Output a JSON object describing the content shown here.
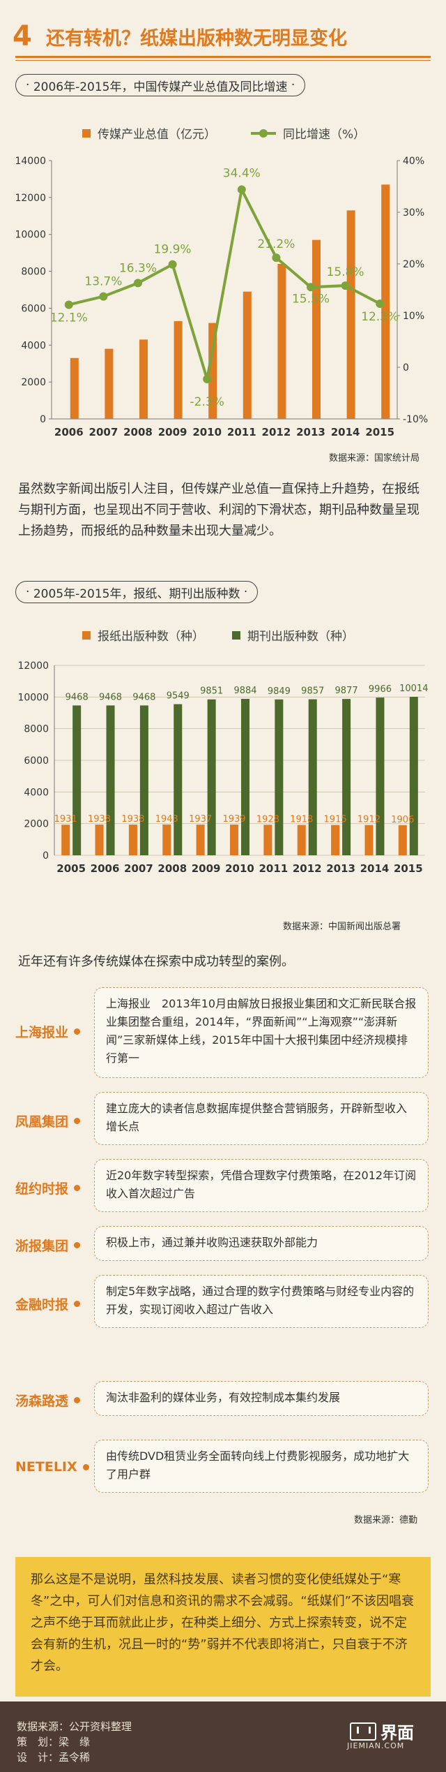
{
  "header": {
    "number": "4",
    "title": "还有转机？纸媒出版种数无明显变化"
  },
  "colors": {
    "orange": "#e07a20",
    "green": "#7ea33a",
    "darkgreen": "#4c6a2c",
    "yellow": "#f3c63f"
  },
  "chart_data": [
    {
      "type": "bar",
      "title": "2006年-2015年，中国传媒产业总值及同比增速",
      "categories": [
        "2006",
        "2007",
        "2008",
        "2009",
        "2010",
        "2011",
        "2012",
        "2013",
        "2014",
        "2015"
      ],
      "series": [
        {
          "name": "传媒产业总值（亿元）",
          "type": "bar",
          "axis": "left",
          "values": [
            3300,
            3800,
            4300,
            5300,
            5200,
            6900,
            8400,
            9700,
            11300,
            12700
          ]
        },
        {
          "name": "同比增速（%）",
          "type": "line",
          "axis": "right",
          "values": [
            12.1,
            13.7,
            16.3,
            19.9,
            -2.3,
            34.4,
            21.2,
            15.5,
            15.8,
            12.3
          ]
        }
      ],
      "data_labels": [
        "12.1%",
        "13.7%",
        "16.3%",
        "19.9%",
        "-2.3%",
        "34.4%",
        "21.2%",
        "15.5%",
        "15.8%",
        "12.3%"
      ],
      "ylim_left": [
        0,
        14000
      ],
      "yticks_left": [
        "0",
        "2000",
        "4000",
        "6000",
        "8000",
        "10000",
        "12000",
        "14000"
      ],
      "ylim_right": [
        -10,
        40
      ],
      "yticks_right": [
        "-10%",
        "0",
        "10%",
        "20%",
        "30%",
        "40%"
      ],
      "source": "数据来源：国家统计局"
    },
    {
      "type": "bar",
      "title": "2005年-2015年，报纸、期刊出版种数",
      "categories": [
        "2005",
        "2006",
        "2007",
        "2008",
        "2009",
        "2010",
        "2011",
        "2012",
        "2013",
        "2014",
        "2015"
      ],
      "series": [
        {
          "name": "报纸出版种数（种）",
          "values": [
            1931,
            1938,
            1938,
            1943,
            1937,
            1939,
            1928,
            1918,
            1915,
            1912,
            1906
          ]
        },
        {
          "name": "期刊出版种数（种）",
          "values": [
            9468,
            9468,
            9468,
            9549,
            9851,
            9884,
            9849,
            9857,
            9877,
            9966,
            10014
          ]
        }
      ],
      "ylim": [
        0,
        12000
      ],
      "yticks": [
        "0",
        "2000",
        "4000",
        "6000",
        "8000",
        "10000",
        "12000"
      ],
      "source": "数据来源：中国新闻出版总署"
    }
  ],
  "text": {
    "para1": "虽然数字新闻出版引人注目，但传媒产业总值一直保持上升趋势，在报纸与期刊方面，也呈现出不同于营收、利润的下滑状态，期刊品种数量呈现上扬趋势，而报纸的品种数量未出现大量减少。",
    "cases_intro": "近年还有许多传统媒体在探索中成功转型的案例。",
    "cases_source": "数据来源：德勤",
    "conclusion": "那么这是不是说明，虽然科技发展、读者习惯的变化使纸媒处于“寒冬”之中，可人们对信息和资讯的需求不会减弱。“纸媒们”不该因唱衰之声不绝于耳而就此止步，在种类上细分、方式上探索转变，说不定会有新的生机，况且一时的“势”弱并不代表即将消亡，只自衰于不济才会。"
  },
  "cases": [
    {
      "name": "上海报业",
      "desc": "上海报业　2013年10月由解放日报报业集团和文汇新民联合报业集团整合重组，2014年，“界面新闻”“上海观察”“澎湃新闻”三家新媒体上线，2015年中国十大报刊集团中经济规模排行第一"
    },
    {
      "name": "凤凰集团",
      "desc": "建立庞大的读者信息数据库提供整合营销服务，开辟新型收入增长点"
    },
    {
      "name": "纽约时报",
      "desc": "近20年数字转型探索，凭借合理数字付费策略，在2012年订阅收入首次超过广告"
    },
    {
      "name": "浙报集团",
      "desc": "积极上市，通过兼并收购迅速获取外部能力"
    },
    {
      "name": "金融时报",
      "desc": "制定5年数字战略，通过合理的数字付费策略与财经专业内容的开发，实现订阅收入超过广告收入"
    },
    {
      "name": "汤森路透",
      "desc": "淘汰非盈利的媒体业务，有效控制成本集约发展"
    },
    {
      "name": "NETELIX",
      "desc": "由传统DVD租赁业务全面转向线上付费影视服务，成功地扩大了用户群"
    }
  ],
  "footer": {
    "data_source": "数据来源：公开资料整理",
    "planner": "策　划：梁　缘",
    "designer": "设　计：孟令稀",
    "logo_cn": "界面",
    "logo_en": "JIEMIAN.COM"
  }
}
